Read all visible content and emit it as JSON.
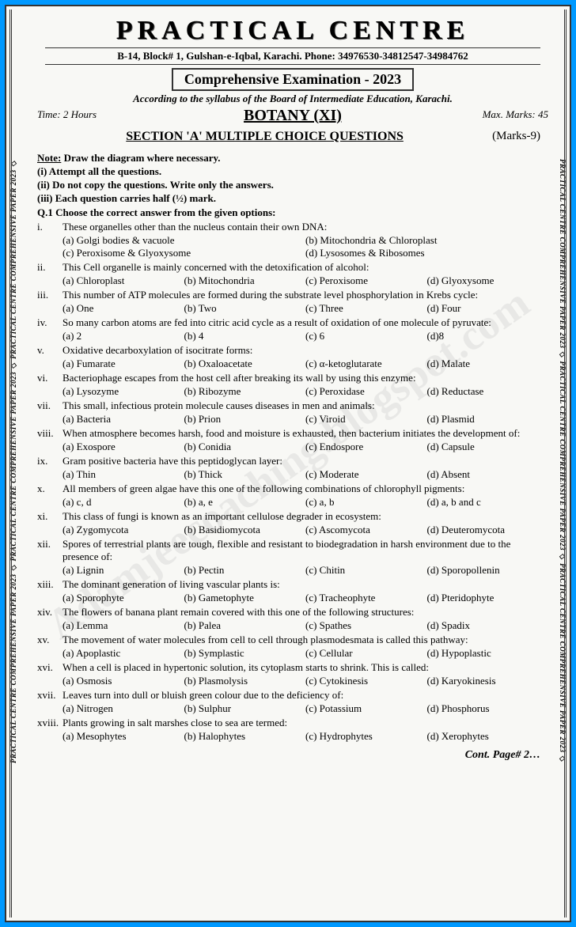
{
  "sideText": "PRACTICAL CENTRE COMPREHENSIVE PAPER 2023  ◇  PRACTICAL CENTRE COMPREHENSIVE PAPER 2023  ◇  PRACTICAL CENTRE COMPREHENSIVE PAPER 2023  ◇",
  "header": {
    "title": "PRACTICAL CENTRE",
    "address": "B-14, Block# 1, Gulshan-e-Iqbal, Karachi. Phone: 34976530-34812547-34984762",
    "examBox": "Comprehensive Examination - 2023",
    "syllabus": "According to the syllabus of the Board of Intermediate Education, Karachi.",
    "time": "Time: 2 Hours",
    "maxMarks": "Max. Marks: 45",
    "subject": "BOTANY (XI)",
    "sectionTitle": "SECTION 'A' MULTIPLE CHOICE QUESTIONS",
    "sectionMarks": "(Marks-9)"
  },
  "noteLabel": "Note:",
  "noteText": "Draw the diagram where necessary.",
  "instructions": [
    "(i)    Attempt all the questions.",
    "(ii)   Do not copy the questions. Write only the answers.",
    "(iii)  Each question carries half (½) mark."
  ],
  "qHeading": "Q.1 Choose the correct answer from the given options:",
  "watermark": "Adamjeecoaching.blogspot.com",
  "contPage": "Cont. Page# 2…",
  "questions": [
    {
      "num": "i.",
      "text": "These organelles other than the nucleus contain their own DNA:",
      "cols": 2,
      "opts": [
        "(a) Golgi bodies & vacuole",
        "(b) Mitochondria & Chloroplast",
        "(c) Peroxisome & Glyoxysome",
        "(d) Lysosomes & Ribosomes"
      ]
    },
    {
      "num": "ii.",
      "text": "This Cell organelle is mainly concerned with the detoxification of alcohol:",
      "cols": 4,
      "opts": [
        "(a) Chloroplast",
        "(b) Mitochondria",
        "(c) Peroxisome",
        "(d) Glyoxysome"
      ]
    },
    {
      "num": "iii.",
      "text": "This number of ATP molecules are formed during the substrate level phosphorylation in Krebs cycle:",
      "cols": 4,
      "opts": [
        "(a) One",
        "(b) Two",
        "(c) Three",
        "(d) Four"
      ]
    },
    {
      "num": "iv.",
      "text": "So many carbon atoms are fed into citric acid cycle as a result of oxidation of one molecule of pyruvate:",
      "cols": 4,
      "opts": [
        "(a) 2",
        "(b) 4",
        "(c) 6",
        "(d)8"
      ]
    },
    {
      "num": "v.",
      "text": "Oxidative decarboxylation of isocitrate forms:",
      "cols": 4,
      "opts": [
        "(a) Fumarate",
        "(b) Oxaloacetate",
        "(c) α-ketoglutarate",
        "(d) Malate"
      ]
    },
    {
      "num": "vi.",
      "text": "Bacteriophage escapes from the host cell after breaking its wall by using this enzyme:",
      "cols": 4,
      "opts": [
        "(a) Lysozyme",
        "(b) Ribozyme",
        "(c) Peroxidase",
        "(d) Reductase"
      ]
    },
    {
      "num": "vii.",
      "text": "This small, infectious protein molecule causes diseases in men and animals:",
      "cols": 4,
      "opts": [
        "(a) Bacteria",
        "(b) Prion",
        "(c) Viroid",
        "(d) Plasmid"
      ]
    },
    {
      "num": "viii.",
      "text": "When atmosphere becomes harsh, food and moisture is exhausted, then bacterium initiates the development of:",
      "cols": 4,
      "opts": [
        "(a) Exospore",
        "(b) Conidia",
        "(c) Endospore",
        "(d) Capsule"
      ]
    },
    {
      "num": "ix.",
      "text": "Gram positive bacteria have this peptidoglycan layer:",
      "cols": 4,
      "opts": [
        "(a) Thin",
        "(b) Thick",
        "(c) Moderate",
        "(d) Absent"
      ]
    },
    {
      "num": "x.",
      "text": "All members of green algae have this one of the following combinations of chlorophyll pigments:",
      "cols": 4,
      "opts": [
        "(a) c, d",
        "(b) a, e",
        "(c) a, b",
        "(d) a, b and c"
      ]
    },
    {
      "num": "xi.",
      "text": "This class of fungi is known as an important cellulose degrader in   ecosystem:",
      "cols": 4,
      "opts": [
        "(a) Zygomycota",
        "(b) Basidiomycota",
        "(c) Ascomycota",
        "(d) Deuteromycota"
      ]
    },
    {
      "num": "xii.",
      "text": "Spores of terrestrial plants are tough, flexible and resistant to biodegradation in harsh environment due to the presence of:",
      "cols": 4,
      "opts": [
        "(a) Lignin",
        "(b) Pectin",
        "(c) Chitin",
        "(d) Sporopollenin"
      ]
    },
    {
      "num": "xiii.",
      "text": "The dominant generation of living vascular plants is:",
      "cols": 4,
      "opts": [
        "(a) Sporophyte",
        "(b) Gametophyte",
        "(c) Tracheophyte",
        "(d) Pteridophyte"
      ]
    },
    {
      "num": "xiv.",
      "text": "The flowers of banana plant remain covered with this one of the following structures:",
      "cols": 4,
      "opts": [
        "(a) Lemma",
        "(b) Palea",
        "(c) Spathes",
        "(d) Spadix"
      ]
    },
    {
      "num": "xv.",
      "text": "The movement of water molecules from cell to cell through plasmodesmata is called this pathway:",
      "cols": 4,
      "opts": [
        "(a) Apoplastic",
        "(b) Symplastic",
        "(c) Cellular",
        "(d) Hypoplastic"
      ]
    },
    {
      "num": "xvi.",
      "text": "When a cell is placed in hypertonic solution, its cytoplasm starts to shrink. This is called:",
      "cols": 4,
      "opts": [
        "(a) Osmosis",
        "(b) Plasmolysis",
        "(c) Cytokinesis",
        "(d) Karyokinesis"
      ]
    },
    {
      "num": "xvii.",
      "text": "Leaves turn into dull or bluish green colour due to the deficiency of:",
      "cols": 4,
      "opts": [
        "(a) Nitrogen",
        "(b) Sulphur",
        "(c) Potassium",
        "(d) Phosphorus"
      ]
    },
    {
      "num": "xviii.",
      "text": "Plants growing in salt marshes close to sea are termed:",
      "cols": 4,
      "opts": [
        "(a) Mesophytes",
        "(b) Halophytes",
        "(c) Hydrophytes",
        "(d) Xerophytes"
      ]
    }
  ]
}
